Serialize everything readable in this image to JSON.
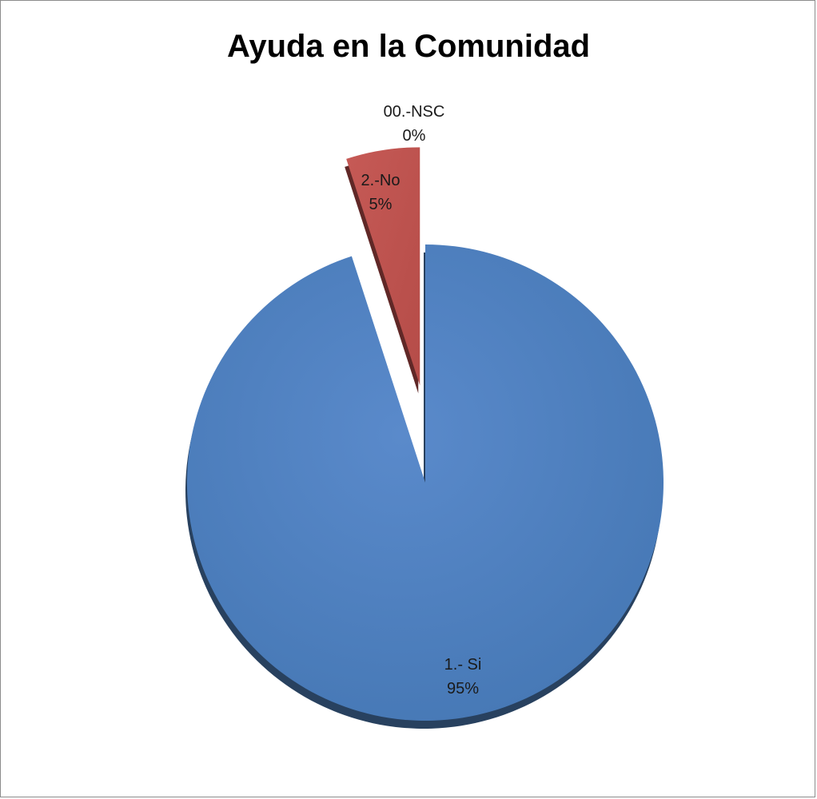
{
  "chart_data": {
    "type": "pie",
    "title": "Ayuda en la Comunidad",
    "slices": [
      {
        "label": "1.- Si",
        "percent_label": "95%",
        "value": 95,
        "color": "#4f81bd",
        "exploded": false
      },
      {
        "label": "2.-No",
        "percent_label": "5%",
        "value": 5,
        "color": "#c0504d",
        "exploded": true
      },
      {
        "label": "00.-NSC",
        "percent_label": "0%",
        "value": 0,
        "color": "#9bbb59",
        "exploded": true
      }
    ]
  }
}
